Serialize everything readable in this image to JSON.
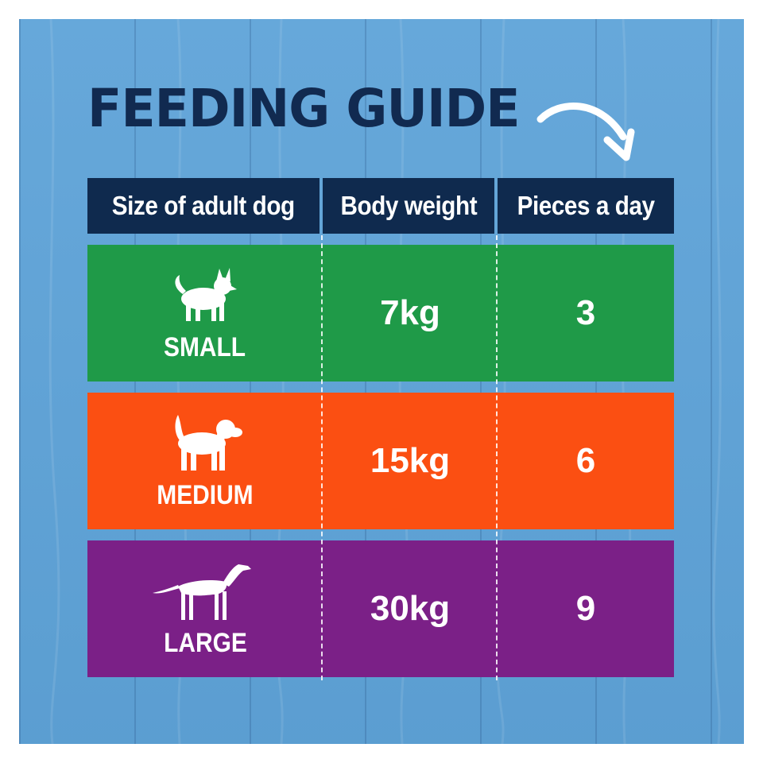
{
  "title": "FEEDING GUIDE",
  "icons": {
    "arrow": "curved-arrow-icon",
    "small": "small-dog-icon",
    "medium": "medium-dog-icon",
    "large": "large-dog-icon"
  },
  "headers": [
    "Size of adult dog",
    "Body weight",
    "Pieces a day"
  ],
  "rows": [
    {
      "size": "SMALL",
      "weight": "7kg",
      "pieces": "3",
      "color": "#1f9a48"
    },
    {
      "size": "MEDIUM",
      "weight": "15kg",
      "pieces": "6",
      "color": "#fb4f12"
    },
    {
      "size": "LARGE",
      "weight": "30kg",
      "pieces": "9",
      "color": "#7b2087"
    }
  ],
  "colors": {
    "background": "#5ea3d8",
    "title": "#112a50",
    "header": "#0f2a4e"
  }
}
